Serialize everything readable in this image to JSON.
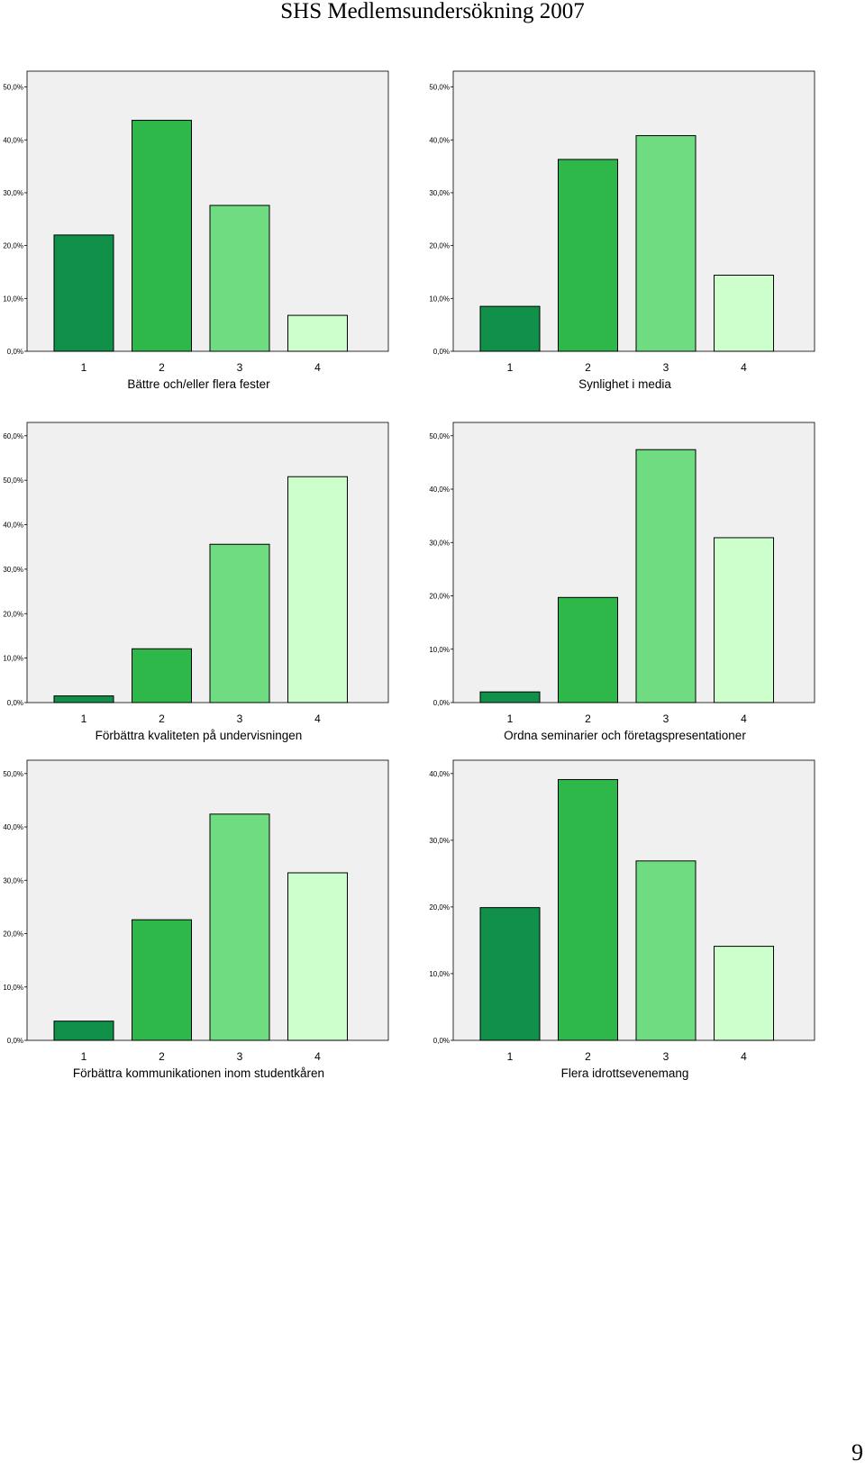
{
  "page": {
    "title": "SHS Medlemsundersökning 2007",
    "page_number": "9"
  },
  "colors": {
    "plot_background": "#f0f0f0",
    "bar_outline": "#000000",
    "category_colors": [
      "#11904a",
      "#2eb84a",
      "#70dc82",
      "#ccffcc"
    ]
  },
  "chart_data": [
    {
      "type": "bar",
      "categories": [
        "1",
        "2",
        "3",
        "4"
      ],
      "values": [
        22.0,
        43.7,
        27.6,
        6.8
      ],
      "xlabel": "Bättre och/eller flera fester",
      "ylim": [
        0,
        53
      ],
      "yticks": [
        0,
        10,
        20,
        30,
        40,
        50
      ],
      "ytick_labels": [
        "0,0%",
        "10,0%",
        "20,0%",
        "30,0%",
        "40,0%",
        "50,0%"
      ]
    },
    {
      "type": "bar",
      "categories": [
        "1",
        "2",
        "3",
        "4"
      ],
      "values": [
        8.5,
        36.3,
        40.8,
        14.4
      ],
      "xlabel": "Synlighet i media",
      "ylim": [
        0,
        53
      ],
      "yticks": [
        0,
        10,
        20,
        30,
        40,
        50
      ],
      "ytick_labels": [
        "0,0%",
        "10,0%",
        "20,0%",
        "30,0%",
        "40,0%",
        "50,0%"
      ]
    },
    {
      "type": "bar",
      "categories": [
        "1",
        "2",
        "3",
        "4"
      ],
      "values": [
        1.5,
        12.1,
        35.6,
        50.8
      ],
      "xlabel": "Förbättra kvaliteten på undervisningen",
      "ylim": [
        0,
        63
      ],
      "yticks": [
        0,
        10,
        20,
        30,
        40,
        50,
        60
      ],
      "ytick_labels": [
        "0,0%",
        "10,0%",
        "20,0%",
        "30,0%",
        "40,0%",
        "50,0%",
        "60,0%"
      ]
    },
    {
      "type": "bar",
      "categories": [
        "1",
        "2",
        "3",
        "4"
      ],
      "values": [
        2.0,
        19.7,
        47.4,
        30.9
      ],
      "xlabel": "Ordna seminarier och företagspresentationer",
      "ylim": [
        0,
        52.5
      ],
      "yticks": [
        0,
        10,
        20,
        30,
        40,
        50
      ],
      "ytick_labels": [
        "0,0%",
        "10,0%",
        "20,0%",
        "30,0%",
        "40,0%",
        "50,0%"
      ]
    },
    {
      "type": "bar",
      "categories": [
        "1",
        "2",
        "3",
        "4"
      ],
      "values": [
        3.6,
        22.6,
        42.4,
        31.4
      ],
      "xlabel": "Förbättra kommunikationen inom studentkåren",
      "ylim": [
        0,
        52.5
      ],
      "yticks": [
        0,
        10,
        20,
        30,
        40,
        50
      ],
      "ytick_labels": [
        "0,0%",
        "10,0%",
        "20,0%",
        "30,0%",
        "40,0%",
        "50,0%"
      ]
    },
    {
      "type": "bar",
      "categories": [
        "1",
        "2",
        "3",
        "4"
      ],
      "values": [
        19.9,
        39.1,
        26.9,
        14.1
      ],
      "xlabel": "Flera idrottsevenemang",
      "ylim": [
        0,
        42
      ],
      "yticks": [
        0,
        10,
        20,
        30,
        40
      ],
      "ytick_labels": [
        "0,0%",
        "10,0%",
        "20,0%",
        "30,0%",
        "40,0%"
      ]
    }
  ]
}
